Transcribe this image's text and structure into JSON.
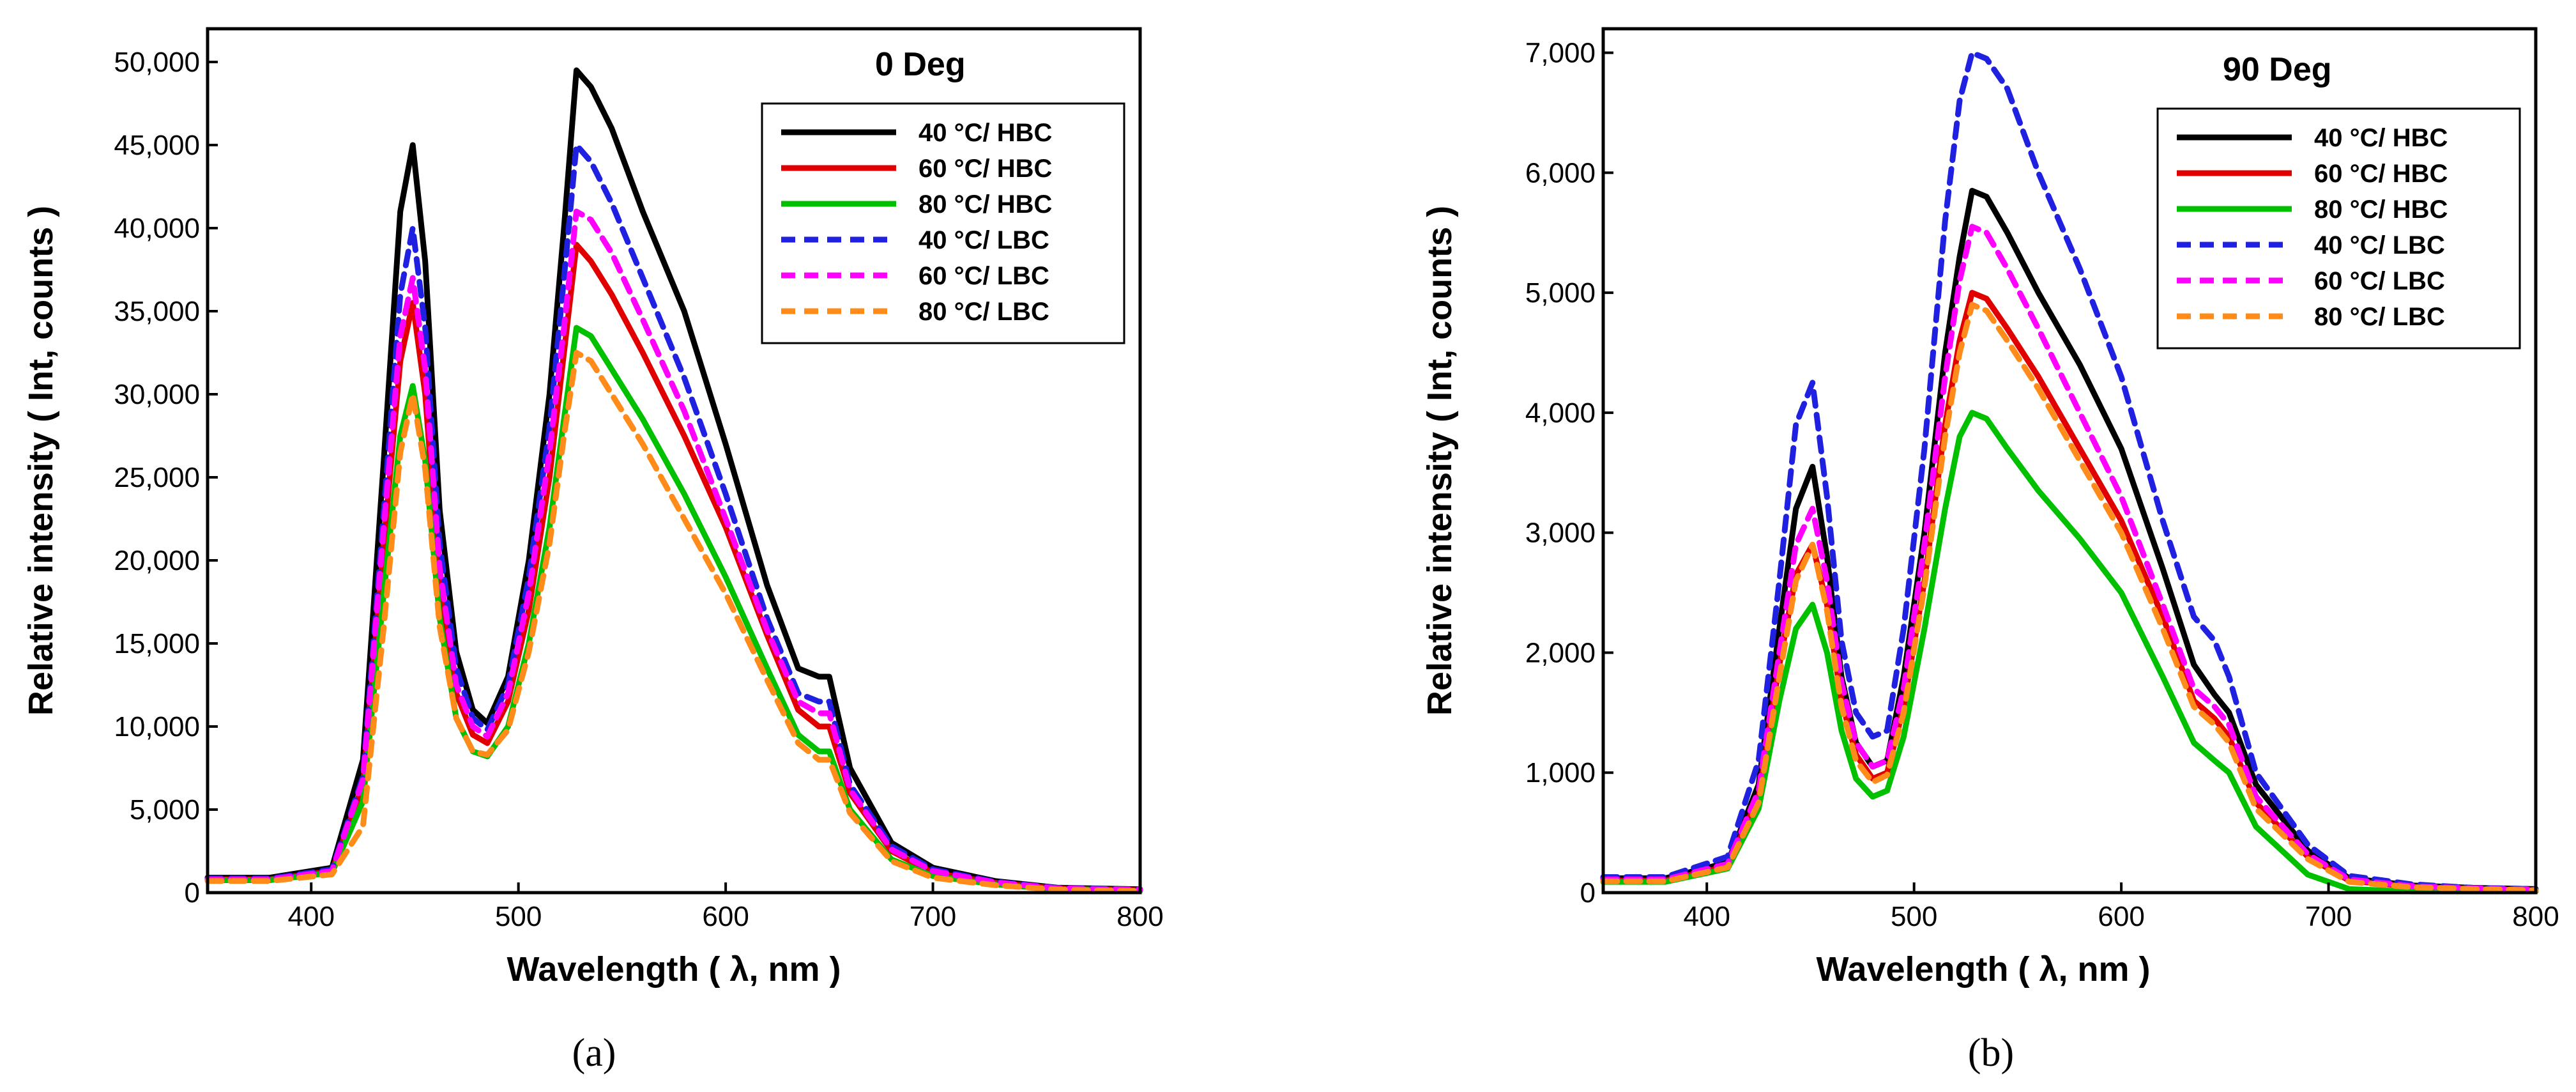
{
  "chart_data": [
    {
      "type": "line",
      "panel_label": "(a)",
      "title": "0 Deg",
      "xlabel": "Wavelength ( λ, nm )",
      "ylabel": "Relative intensity ( Int, counts )",
      "xlim": [
        350,
        800
      ],
      "ylim": [
        0,
        52000
      ],
      "xticks": [
        400,
        500,
        600,
        700,
        800
      ],
      "xtick_labels": [
        "400",
        "500",
        "600",
        "700",
        "800"
      ],
      "yticks": [
        0,
        5000,
        10000,
        15000,
        20000,
        25000,
        30000,
        35000,
        40000,
        45000,
        50000
      ],
      "ytick_labels": [
        "0",
        "5,000",
        "10,000",
        "15,000",
        "20,000",
        "25,000",
        "30,000",
        "35,000",
        "40,000",
        "45,000",
        "50,000"
      ],
      "legend_position": "top-right",
      "x": [
        350,
        380,
        410,
        425,
        435,
        443,
        449,
        455,
        462,
        470,
        478,
        485,
        495,
        505,
        515,
        522,
        528,
        535,
        545,
        560,
        580,
        600,
        620,
        635,
        645,
        650,
        660,
        680,
        700,
        730,
        760,
        800
      ],
      "series": [
        {
          "name": "40 °C/ HBC",
          "color": "#000000",
          "dash": "solid",
          "values": [
            900,
            900,
            1500,
            8000,
            26000,
            41000,
            45000,
            38000,
            23000,
            14500,
            11000,
            10200,
            13000,
            20000,
            30000,
            40000,
            49500,
            48500,
            46000,
            41000,
            35000,
            27000,
            18500,
            13500,
            13000,
            13000,
            7500,
            3000,
            1500,
            700,
            300,
            200
          ]
        },
        {
          "name": "60 °C/ HBC",
          "color": "#e00000",
          "dash": "solid",
          "values": [
            800,
            800,
            1300,
            6500,
            21000,
            32000,
            35500,
            30000,
            18500,
            12000,
            9500,
            9000,
            11500,
            17000,
            25000,
            32500,
            39000,
            38000,
            36000,
            32500,
            27500,
            22000,
            15500,
            11000,
            10000,
            10000,
            6000,
            2500,
            1200,
            600,
            250,
            150
          ]
        },
        {
          "name": "80 °C/ HBC",
          "color": "#00c000",
          "dash": "solid",
          "values": [
            750,
            750,
            1200,
            5500,
            18000,
            27500,
            30500,
            26000,
            16500,
            10500,
            8500,
            8200,
            10000,
            15000,
            22000,
            28500,
            34000,
            33500,
            31500,
            28500,
            24000,
            19000,
            13500,
            9500,
            8500,
            8500,
            5000,
            2000,
            1000,
            500,
            200,
            100
          ]
        },
        {
          "name": "40 °C/ LBC",
          "color": "#2020e0",
          "dash": "dashed",
          "values": [
            850,
            850,
            1400,
            7000,
            23000,
            36000,
            40000,
            34000,
            21000,
            13500,
            10500,
            9800,
            12500,
            19000,
            28000,
            37000,
            45000,
            44000,
            41500,
            37000,
            31000,
            24000,
            16500,
            12000,
            11500,
            11500,
            6500,
            2800,
            1400,
            650,
            280,
            180
          ]
        },
        {
          "name": "60 °C/ LBC",
          "color": "#ff00ff",
          "dash": "dashed",
          "values": [
            800,
            800,
            1300,
            6800,
            22000,
            33500,
            37000,
            31500,
            19500,
            12500,
            10000,
            9400,
            12000,
            18000,
            26500,
            34000,
            41000,
            40500,
            38500,
            34500,
            29000,
            22500,
            15800,
            11500,
            10800,
            10800,
            6200,
            2600,
            1300,
            620,
            260,
            170
          ]
        },
        {
          "name": "80 °C/ LBC",
          "color": "#ff8c1a",
          "dash": "dashed",
          "values": [
            700,
            700,
            1100,
            4000,
            16000,
            26500,
            30000,
            25500,
            16000,
            10500,
            8500,
            8300,
            9800,
            14500,
            21000,
            27500,
            32500,
            32000,
            30000,
            27000,
            22500,
            18000,
            12800,
            9000,
            8000,
            8000,
            4800,
            1900,
            900,
            450,
            180,
            90
          ]
        }
      ]
    },
    {
      "type": "line",
      "panel_label": "(b)",
      "title": "90 Deg",
      "xlabel": "Wavelength ( λ, nm )",
      "ylabel": "Relative intensity ( Int, counts )",
      "xlim": [
        350,
        800
      ],
      "ylim": [
        0,
        7200
      ],
      "xticks": [
        400,
        500,
        600,
        700,
        800
      ],
      "xtick_labels": [
        "400",
        "500",
        "600",
        "700",
        "800"
      ],
      "yticks": [
        0,
        1000,
        2000,
        3000,
        4000,
        5000,
        6000,
        7000
      ],
      "ytick_labels": [
        "0",
        "1,000",
        "2,000",
        "3,000",
        "4,000",
        "5,000",
        "6,000",
        "7,000"
      ],
      "legend_position": "top-right",
      "x": [
        350,
        380,
        410,
        425,
        435,
        443,
        451,
        458,
        465,
        472,
        480,
        487,
        495,
        505,
        515,
        522,
        528,
        535,
        545,
        560,
        580,
        600,
        620,
        635,
        645,
        652,
        665,
        690,
        710,
        740,
        770,
        800
      ],
      "series": [
        {
          "name": "40 °C/ HBC",
          "color": "#000000",
          "dash": "solid",
          "values": [
            120,
            120,
            250,
            900,
            2200,
            3200,
            3550,
            2800,
            1800,
            1250,
            1050,
            1100,
            1800,
            3000,
            4500,
            5300,
            5850,
            5800,
            5500,
            5000,
            4400,
            3700,
            2700,
            1900,
            1650,
            1500,
            900,
            350,
            120,
            60,
            40,
            30
          ]
        },
        {
          "name": "60 °C/ HBC",
          "color": "#e00000",
          "dash": "solid",
          "values": [
            100,
            100,
            220,
            800,
            1900,
            2650,
            2900,
            2400,
            1600,
            1150,
            950,
            1000,
            1550,
            2600,
            3900,
            4600,
            5000,
            4950,
            4700,
            4300,
            3700,
            3100,
            2300,
            1600,
            1450,
            1300,
            750,
            300,
            100,
            50,
            30,
            20
          ]
        },
        {
          "name": "80 °C/ HBC",
          "color": "#00c000",
          "dash": "solid",
          "values": [
            90,
            90,
            200,
            700,
            1600,
            2200,
            2400,
            2000,
            1350,
            950,
            800,
            850,
            1300,
            2200,
            3200,
            3800,
            4000,
            3950,
            3700,
            3350,
            2950,
            2500,
            1800,
            1250,
            1100,
            1000,
            550,
            150,
            30,
            10,
            10,
            10
          ]
        },
        {
          "name": "40 °C/ LBC",
          "color": "#2020e0",
          "dash": "dashed",
          "values": [
            130,
            130,
            300,
            1100,
            2600,
            3900,
            4250,
            3300,
            2100,
            1500,
            1300,
            1350,
            2200,
            3700,
            5600,
            6600,
            7000,
            6950,
            6700,
            6000,
            5200,
            4300,
            3100,
            2300,
            2100,
            1800,
            1000,
            400,
            140,
            70,
            40,
            30
          ]
        },
        {
          "name": "60 °C/ LBC",
          "color": "#ff00ff",
          "dash": "dashed",
          "values": [
            110,
            110,
            240,
            850,
            2000,
            2900,
            3200,
            2600,
            1750,
            1250,
            1050,
            1100,
            1700,
            2900,
            4300,
            5100,
            5550,
            5500,
            5200,
            4700,
            4000,
            3300,
            2400,
            1700,
            1550,
            1400,
            800,
            320,
            110,
            55,
            35,
            25
          ]
        },
        {
          "name": "80 °C/ LBC",
          "color": "#ff8c1a",
          "dash": "dashed",
          "values": [
            95,
            95,
            210,
            750,
            1800,
            2600,
            2900,
            2350,
            1550,
            1100,
            920,
            980,
            1500,
            2550,
            3800,
            4500,
            4900,
            4850,
            4600,
            4200,
            3600,
            3000,
            2200,
            1550,
            1400,
            1250,
            700,
            280,
            90,
            45,
            30,
            20
          ]
        }
      ]
    }
  ]
}
